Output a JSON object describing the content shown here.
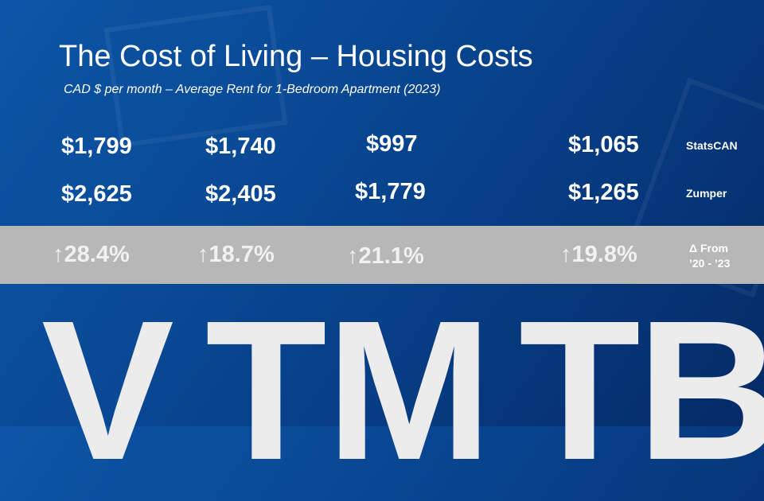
{
  "chart_data": {
    "type": "table",
    "title": "The Cost of Living – Housing Costs",
    "subtitle": "CAD $ per month – Average Rent for 1-Bedroom Apartment (2023)",
    "columns": [
      "V",
      "T",
      "M",
      "TB"
    ],
    "rows": [
      {
        "label": "StatsCAN",
        "values": [
          "$1,799",
          "$1,740",
          "$997",
          "$1,065"
        ]
      },
      {
        "label": "Zumper",
        "values": [
          "$2,625",
          "$2,405",
          "$1,779",
          "$1,265"
        ]
      }
    ],
    "change": {
      "label_line1": "Δ From",
      "label_line2": "’20 - ’23",
      "values": [
        "↑28.4%",
        "↑18.7%",
        "↑21.1%",
        "↑19.8%"
      ]
    }
  },
  "colors": {
    "background": "#0a4b98",
    "band": "#b7b7b7",
    "text": "#ffffff"
  }
}
